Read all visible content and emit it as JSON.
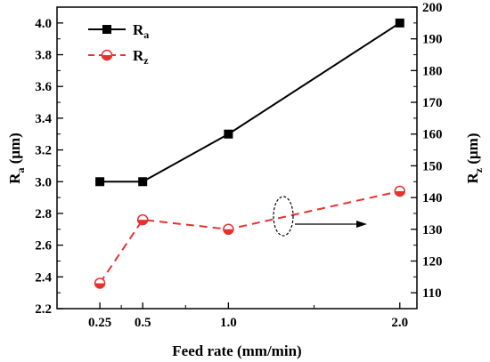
{
  "chart_data": {
    "type": "line",
    "x": [
      0.25,
      0.5,
      1.0,
      2.0
    ],
    "x_tick_labels": [
      "0.25",
      "0.5",
      "1.0",
      "2.0"
    ],
    "xlabel": "Feed rate (mm/min)",
    "xlim": [
      0.0,
      2.1
    ],
    "grid": false,
    "legend_position": "top-left",
    "left_axis": {
      "label_main": "R",
      "label_sub": "a",
      "label_unit": " (μm)",
      "ylim": [
        2.2,
        4.1
      ],
      "ticks": [
        2.2,
        2.4,
        2.6,
        2.8,
        3.0,
        3.2,
        3.4,
        3.6,
        3.8,
        4.0
      ],
      "tick_labels": [
        "2.2",
        "2.4",
        "2.6",
        "2.8",
        "3.0",
        "3.2",
        "3.4",
        "3.6",
        "3.8",
        "4.0"
      ]
    },
    "right_axis": {
      "label_main": "R",
      "label_sub": "z",
      "label_unit": " (μm)",
      "ylim": [
        105,
        200
      ],
      "ticks": [
        110,
        120,
        130,
        140,
        150,
        160,
        170,
        180,
        190,
        200
      ],
      "tick_labels": [
        "110",
        "120",
        "130",
        "140",
        "150",
        "160",
        "170",
        "180",
        "190",
        "200"
      ]
    },
    "series": [
      {
        "name_main": "R",
        "name_sub": "a",
        "axis": "left",
        "values": [
          3.0,
          3.0,
          3.3,
          4.0
        ],
        "color": "#000000",
        "line_style": "solid",
        "marker": "square"
      },
      {
        "name_main": "R",
        "name_sub": "z",
        "axis": "right",
        "values": [
          113,
          133,
          130,
          142
        ],
        "color": "#e8302f",
        "line_style": "dashed",
        "marker": "half-filled-circle"
      }
    ],
    "annotation": {
      "type": "ellipse-with-arrow",
      "points_to": "right axis"
    }
  }
}
